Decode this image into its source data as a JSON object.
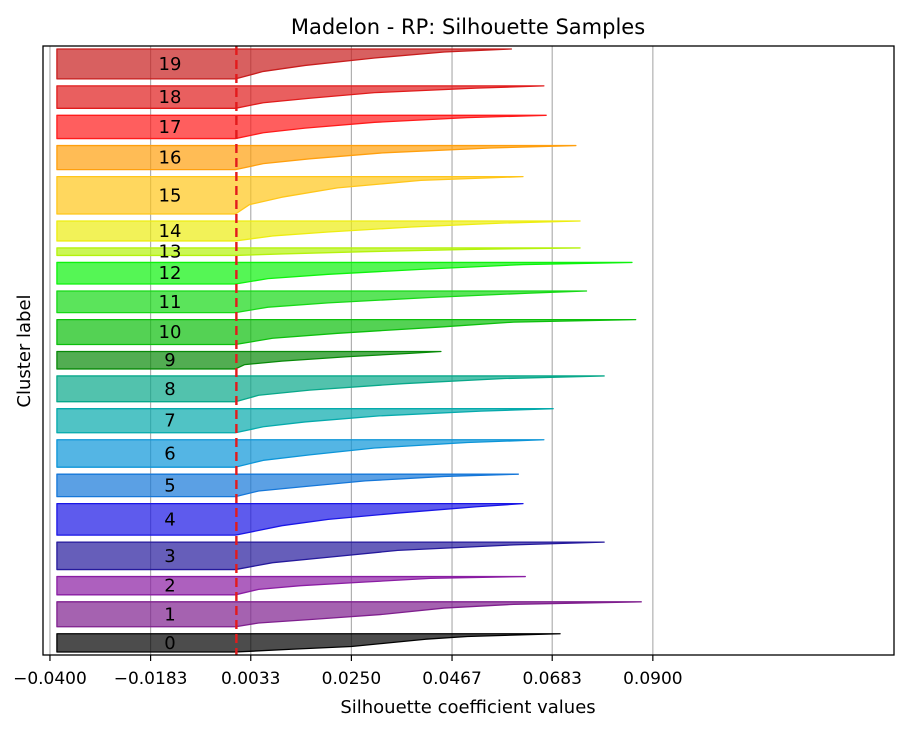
{
  "chart_data": {
    "type": "area",
    "title": "Madelon - RP: Silhouette Samples",
    "xlabel": "Silhouette coefficient values",
    "ylabel": "Cluster label",
    "xlim": [
      -0.0415,
      0.142
    ],
    "x_ticks": [
      -0.04,
      -0.0183,
      0.0033,
      0.025,
      0.0467,
      0.0683,
      0.09
    ],
    "x_tick_labels": [
      "−0.0400",
      "−0.0183",
      "0.0033",
      "0.0250",
      "0.0467",
      "0.0683",
      "0.0900"
    ],
    "grid": "x",
    "average_silhouette": 0.0002,
    "average_line_color": "#e31a1c",
    "clusters": [
      {
        "label": "0",
        "color": "#000000",
        "profile": [
          [
            0,
            0.07
          ],
          [
            0.15,
            0.05
          ],
          [
            0.3,
            0.041
          ],
          [
            0.5,
            0.033
          ],
          [
            0.7,
            0.025
          ],
          [
            0.85,
            0.012
          ],
          [
            1,
            0
          ]
        ],
        "size": 22,
        "min": -0.0385,
        "max": 0.0703
      },
      {
        "label": "1",
        "color": "#7f1f8e",
        "profile": [
          [
            0,
            0.0875
          ],
          [
            0.1,
            0.06
          ],
          [
            0.25,
            0.045
          ],
          [
            0.5,
            0.032
          ],
          [
            0.7,
            0.017
          ],
          [
            0.85,
            0.005
          ],
          [
            1,
            0
          ]
        ],
        "size": 30,
        "min": -0.0385,
        "max": 0.0875
      },
      {
        "label": "2",
        "color": "#8a1da3",
        "profile": [
          [
            0,
            0.0625
          ],
          [
            0.1,
            0.042
          ],
          [
            0.3,
            0.028
          ],
          [
            0.5,
            0.014
          ],
          [
            0.7,
            0.005
          ],
          [
            1,
            0
          ]
        ],
        "size": 22,
        "min": -0.0385,
        "max": 0.0625
      },
      {
        "label": "3",
        "color": "#25199c",
        "profile": [
          [
            0,
            0.0795
          ],
          [
            0.1,
            0.06
          ],
          [
            0.3,
            0.035
          ],
          [
            0.55,
            0.02
          ],
          [
            0.75,
            0.008
          ],
          [
            1,
            0
          ]
        ],
        "size": 33,
        "min": -0.0385,
        "max": 0.0795
      },
      {
        "label": "4",
        "color": "#1a16e6",
        "profile": [
          [
            0,
            0.062
          ],
          [
            0.1,
            0.052
          ],
          [
            0.3,
            0.035
          ],
          [
            0.5,
            0.02
          ],
          [
            0.7,
            0.01
          ],
          [
            1,
            0
          ]
        ],
        "size": 38,
        "min": -0.0385,
        "max": 0.062
      },
      {
        "label": "5",
        "color": "#1577d9",
        "profile": [
          [
            0,
            0.061
          ],
          [
            0.1,
            0.045
          ],
          [
            0.3,
            0.028
          ],
          [
            0.55,
            0.015
          ],
          [
            0.75,
            0.005
          ],
          [
            1,
            0
          ]
        ],
        "size": 27,
        "min": -0.0385,
        "max": 0.061
      },
      {
        "label": "6",
        "color": "#0c95d8",
        "profile": [
          [
            0,
            0.0665
          ],
          [
            0.1,
            0.05
          ],
          [
            0.3,
            0.03
          ],
          [
            0.55,
            0.016
          ],
          [
            0.75,
            0.006
          ],
          [
            1,
            0
          ]
        ],
        "size": 33,
        "min": -0.0385,
        "max": 0.0665
      },
      {
        "label": "7",
        "color": "#05aaac",
        "profile": [
          [
            0,
            0.0685
          ],
          [
            0.1,
            0.053
          ],
          [
            0.3,
            0.031
          ],
          [
            0.55,
            0.015
          ],
          [
            0.75,
            0.006
          ],
          [
            1,
            0
          ]
        ],
        "size": 29,
        "min": -0.0385,
        "max": 0.0685
      },
      {
        "label": "8",
        "color": "#08a88a",
        "profile": [
          [
            0,
            0.0795
          ],
          [
            0.1,
            0.058
          ],
          [
            0.3,
            0.036
          ],
          [
            0.55,
            0.016
          ],
          [
            0.75,
            0.005
          ],
          [
            1,
            0
          ]
        ],
        "size": 31,
        "min": -0.0385,
        "max": 0.0795
      },
      {
        "label": "9",
        "color": "#088a08",
        "profile": [
          [
            0,
            0.0443
          ],
          [
            0.1,
            0.038
          ],
          [
            0.3,
            0.024
          ],
          [
            0.55,
            0.01
          ],
          [
            0.75,
            0.002
          ],
          [
            1,
            0
          ]
        ],
        "size": 21,
        "min": -0.0385,
        "max": 0.0443
      },
      {
        "label": "10",
        "color": "#0cbf0c",
        "profile": [
          [
            0,
            0.0863
          ],
          [
            0.1,
            0.06
          ],
          [
            0.3,
            0.044
          ],
          [
            0.55,
            0.022
          ],
          [
            0.75,
            0.008
          ],
          [
            1,
            0
          ]
        ],
        "size": 30,
        "min": -0.0385,
        "max": 0.0863
      },
      {
        "label": "11",
        "color": "#16d916",
        "profile": [
          [
            0,
            0.0757
          ],
          [
            0.1,
            0.063
          ],
          [
            0.3,
            0.042
          ],
          [
            0.55,
            0.02
          ],
          [
            0.75,
            0.007
          ],
          [
            1,
            0
          ]
        ],
        "size": 26,
        "min": -0.0385,
        "max": 0.0757
      },
      {
        "label": "12",
        "color": "#0df20d",
        "profile": [
          [
            0,
            0.0855
          ],
          [
            0.1,
            0.062
          ],
          [
            0.3,
            0.042
          ],
          [
            0.55,
            0.02
          ],
          [
            0.75,
            0.007
          ],
          [
            1,
            0
          ]
        ],
        "size": 26,
        "min": -0.0385,
        "max": 0.0855
      },
      {
        "label": "13",
        "color": "#b5f20d",
        "profile": [
          [
            0,
            0.0743
          ],
          [
            0.2,
            0.05
          ],
          [
            0.5,
            0.028
          ],
          [
            0.8,
            0.01
          ],
          [
            1,
            0
          ]
        ],
        "size": 9,
        "min": -0.0385,
        "max": 0.0743
      },
      {
        "label": "14",
        "color": "#eded11",
        "profile": [
          [
            0,
            0.0743
          ],
          [
            0.1,
            0.058
          ],
          [
            0.3,
            0.038
          ],
          [
            0.55,
            0.02
          ],
          [
            0.75,
            0.008
          ],
          [
            1,
            0
          ]
        ],
        "size": 24,
        "min": -0.0385,
        "max": 0.0743
      },
      {
        "label": "15",
        "color": "#ffc61a",
        "profile": [
          [
            0,
            0.062
          ],
          [
            0.1,
            0.04
          ],
          [
            0.3,
            0.022
          ],
          [
            0.55,
            0.01
          ],
          [
            0.75,
            0.003
          ],
          [
            1,
            0
          ]
        ],
        "size": 45,
        "min": -0.0385,
        "max": 0.062
      },
      {
        "label": "16",
        "color": "#ff9f0d",
        "profile": [
          [
            0,
            0.0734
          ],
          [
            0.1,
            0.055
          ],
          [
            0.3,
            0.032
          ],
          [
            0.55,
            0.016
          ],
          [
            0.75,
            0.006
          ],
          [
            1,
            0
          ]
        ],
        "size": 29,
        "min": -0.0385,
        "max": 0.0734
      },
      {
        "label": "17",
        "color": "#ff1a1a",
        "profile": [
          [
            0,
            0.067
          ],
          [
            0.1,
            0.05
          ],
          [
            0.3,
            0.03
          ],
          [
            0.55,
            0.015
          ],
          [
            0.75,
            0.006
          ],
          [
            1,
            0
          ]
        ],
        "size": 28,
        "min": -0.0385,
        "max": 0.067
      },
      {
        "label": "18",
        "color": "#e01b1b",
        "profile": [
          [
            0,
            0.0665
          ],
          [
            0.1,
            0.052
          ],
          [
            0.3,
            0.03
          ],
          [
            0.55,
            0.016
          ],
          [
            0.75,
            0.006
          ],
          [
            1,
            0
          ]
        ],
        "size": 27,
        "min": -0.0385,
        "max": 0.0665
      },
      {
        "label": "19",
        "color": "#c81d1d",
        "profile": [
          [
            0,
            0.0595
          ],
          [
            0.1,
            0.045
          ],
          [
            0.3,
            0.03
          ],
          [
            0.55,
            0.015
          ],
          [
            0.75,
            0.006
          ],
          [
            1,
            0
          ]
        ],
        "size": 36,
        "min": -0.0385,
        "max": 0.0595
      }
    ]
  }
}
